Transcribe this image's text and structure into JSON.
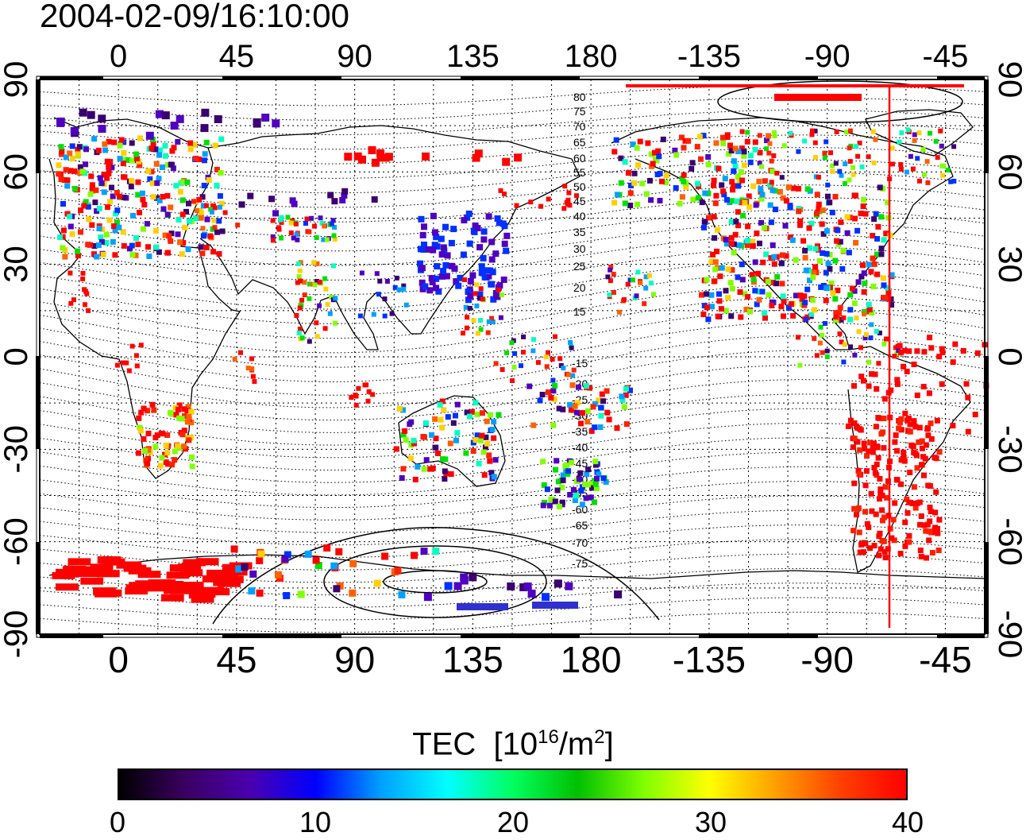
{
  "timestamp": "2004-02-09/16:10:00",
  "map": {
    "lon_ticks": [
      "0",
      "45",
      "90",
      "135",
      "180",
      "-135",
      "-90",
      "-45"
    ],
    "lat_ticks": [
      "90",
      "60",
      "30",
      "0",
      "-30",
      "-60",
      "-90"
    ],
    "maglat_labels_north": [
      "80",
      "75",
      "70",
      "65",
      "60",
      "55",
      "50",
      "45",
      "40",
      "35",
      "30",
      "25",
      "20",
      "15"
    ],
    "maglat_labels_south": [
      "-15",
      "-20",
      "-25",
      "-30",
      "-35",
      "-40",
      "-45",
      "-50",
      "-55",
      "-60",
      "-65",
      "-70",
      "-75"
    ],
    "terminator_line_color": "#ff0000",
    "grid": "dotted"
  },
  "colorbar": {
    "title": "TEC",
    "unit_prefix": "[10",
    "unit_exp": "16",
    "unit_mid": "/m",
    "unit_exp2": "2",
    "unit_suffix": "]",
    "ticks": [
      "0",
      "10",
      "20",
      "30",
      "40"
    ],
    "range": [
      0,
      40
    ],
    "colormap": [
      "#000000",
      "#3a0060",
      "#4a00b0",
      "#0000ff",
      "#00a0ff",
      "#00ffff",
      "#00ff60",
      "#00c000",
      "#80ff00",
      "#ffff00",
      "#ffa000",
      "#ff4000",
      "#ff0000"
    ]
  }
}
